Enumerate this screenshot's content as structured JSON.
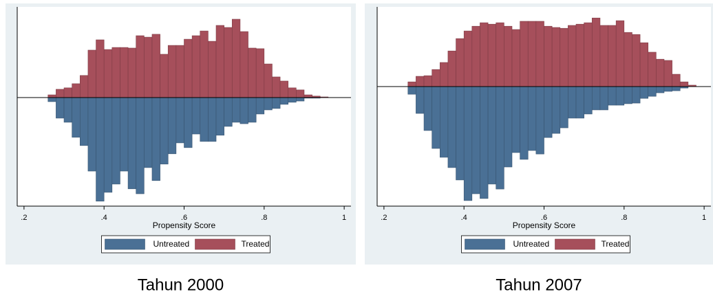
{
  "chart_data": [
    {
      "type": "histogram",
      "title": "Tahun 2000",
      "x_label": "Propensity Score",
      "bins": [
        0.26,
        0.28,
        0.3,
        0.32,
        0.34,
        0.36,
        0.38,
        0.4,
        0.42,
        0.44,
        0.46,
        0.48,
        0.5,
        0.52,
        0.54,
        0.56,
        0.58,
        0.6,
        0.62,
        0.64,
        0.66,
        0.68,
        0.7,
        0.72,
        0.74,
        0.76,
        0.78,
        0.8,
        0.82,
        0.84,
        0.86,
        0.88,
        0.9,
        0.92,
        0.94,
        0.96
      ],
      "series": [
        {
          "name": "Untreated",
          "color": "#4a7095",
          "values": [
            -0.2,
            -1.0,
            -1.2,
            -1.93,
            -2.33,
            -3.57,
            -5.03,
            -4.6,
            -4.2,
            -3.57,
            -4.43,
            -4.67,
            -3.4,
            -4.03,
            -3.23,
            -2.73,
            -2.2,
            -2.43,
            -1.77,
            -2.13,
            -2.13,
            -1.83,
            -1.4,
            -1.2,
            -1.27,
            -1.2,
            -0.8,
            -0.6,
            -0.53,
            -0.33,
            -0.23,
            -0.17,
            -0.03,
            -0.03,
            0
          ]
        },
        {
          "name": "Treated",
          "color": "#a64f5b",
          "values": [
            0.13,
            0.4,
            0.47,
            0.67,
            1.07,
            2.3,
            2.8,
            2.33,
            2.43,
            2.43,
            2.4,
            3.0,
            2.93,
            3.07,
            2.1,
            2.53,
            2.53,
            2.83,
            3.0,
            3.23,
            2.73,
            3.5,
            3.4,
            3.8,
            3.2,
            2.4,
            2.37,
            1.63,
            1.0,
            0.8,
            0.47,
            0.37,
            0.13,
            0.07,
            0.03
          ]
        }
      ],
      "xlim": [
        0.183,
        1.017
      ],
      "ylim": [
        -5.27,
        4.4
      ],
      "xticks": [
        {
          "value": 0.2,
          "label": ".2"
        },
        {
          "value": 0.4,
          "label": ".4"
        },
        {
          "value": 0.6,
          "label": ".6"
        },
        {
          "value": 0.8,
          "label": ".8"
        },
        1
      ]
    },
    {
      "type": "histogram",
      "title": "Tahun 2007",
      "x_label": "Propensity Score",
      "bins": [
        0.26,
        0.28,
        0.3,
        0.32,
        0.34,
        0.36,
        0.38,
        0.4,
        0.42,
        0.44,
        0.46,
        0.48,
        0.5,
        0.52,
        0.54,
        0.56,
        0.58,
        0.6,
        0.62,
        0.64,
        0.66,
        0.68,
        0.7,
        0.72,
        0.74,
        0.76,
        0.78,
        0.8,
        0.82,
        0.84,
        0.86,
        0.88,
        0.9,
        0.92,
        0.94,
        0.96,
        0.98
      ],
      "series": [
        {
          "name": "Untreated",
          "color": "#4a7095",
          "values": [
            -0.37,
            -1.3,
            -2.13,
            -3.0,
            -3.43,
            -3.93,
            -4.53,
            -5.53,
            -5.2,
            -5.43,
            -4.73,
            -4.97,
            -3.9,
            -3.2,
            -3.53,
            -3.1,
            -3.27,
            -2.47,
            -2.27,
            -2.0,
            -1.53,
            -1.53,
            -1.33,
            -1.13,
            -1.13,
            -0.9,
            -0.9,
            -0.83,
            -0.8,
            -0.57,
            -0.47,
            -0.3,
            -0.23,
            -0.2,
            -0.07,
            0
          ]
        },
        {
          "name": "Treated",
          "color": "#a64f5b",
          "values": [
            0.23,
            0.5,
            0.53,
            0.83,
            1.17,
            1.73,
            2.33,
            2.7,
            2.93,
            3.1,
            3.03,
            3.1,
            2.93,
            2.77,
            3.17,
            3.17,
            3.17,
            2.93,
            2.87,
            2.83,
            2.97,
            3.03,
            3.1,
            3.33,
            2.97,
            2.97,
            3.2,
            2.63,
            2.53,
            2.13,
            1.67,
            1.33,
            1.27,
            0.6,
            0.23,
            0.07
          ]
        }
      ],
      "xlim": [
        0.183,
        1.017
      ],
      "ylim": [
        -5.8,
        3.87
      ],
      "xticks": [
        {
          "value": 0.2,
          "label": ".2"
        },
        {
          "value": 0.4,
          "label": ".4"
        },
        {
          "value": 0.6,
          "label": ".6"
        },
        {
          "value": 0.8,
          "label": ".8"
        },
        1
      ]
    }
  ]
}
